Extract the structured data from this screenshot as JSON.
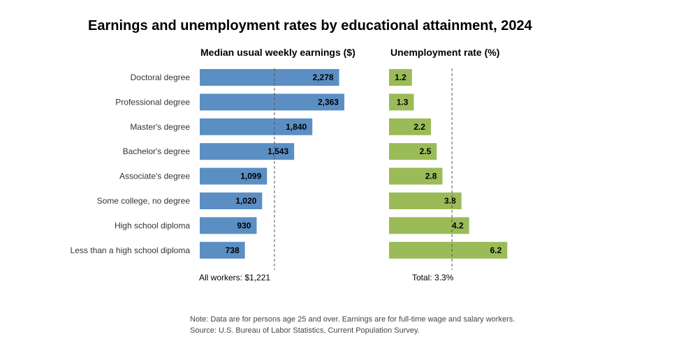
{
  "title": "Earnings and unemployment rates by educational attainment, 2024",
  "colors": {
    "earnings_bar": "#5b8fc4",
    "unemployment_bar": "#9bbb59",
    "reference_line": "#555555"
  },
  "chart_data": [
    {
      "type": "bar",
      "orientation": "horizontal",
      "title": "Median usual weekly earnings ($)",
      "categories": [
        "Doctoral degree",
        "Professional degree",
        "Master's degree",
        "Bachelor's degree",
        "Associate's degree",
        "Some college, no degree",
        "High school diploma",
        "Less than a high school diploma"
      ],
      "values": [
        2278,
        2363,
        1840,
        1543,
        1099,
        1020,
        930,
        738
      ],
      "value_labels": [
        "2,278",
        "2,363",
        "1,840",
        "1,543",
        "1,099",
        "1,020",
        "930",
        "738"
      ],
      "reference": {
        "value": 1221,
        "label": "All workers: $1,221"
      },
      "xlim": [
        0,
        2400
      ],
      "grid": false
    },
    {
      "type": "bar",
      "orientation": "horizontal",
      "title": "Unemployment rate (%)",
      "categories": [
        "Doctoral degree",
        "Professional degree",
        "Master's degree",
        "Bachelor's degree",
        "Associate's degree",
        "Some college, no degree",
        "High school diploma",
        "Less than a high school diploma"
      ],
      "values": [
        1.2,
        1.3,
        2.2,
        2.5,
        2.8,
        3.8,
        4.2,
        6.2
      ],
      "value_labels": [
        "1.2",
        "1.3",
        "2.2",
        "2.5",
        "2.8",
        "3.8",
        "4.2",
        "6.2"
      ],
      "reference": {
        "value": 3.3,
        "label": "Total: 3.3%"
      },
      "xlim": [
        0,
        6.5
      ],
      "grid": false
    }
  ],
  "footnotes": {
    "note": "Note: Data are for persons age 25 and over. Earnings are for full-time wage and salary workers.",
    "source": "Source: U.S. Bureau of Labor Statistics, Current Population Survey."
  }
}
